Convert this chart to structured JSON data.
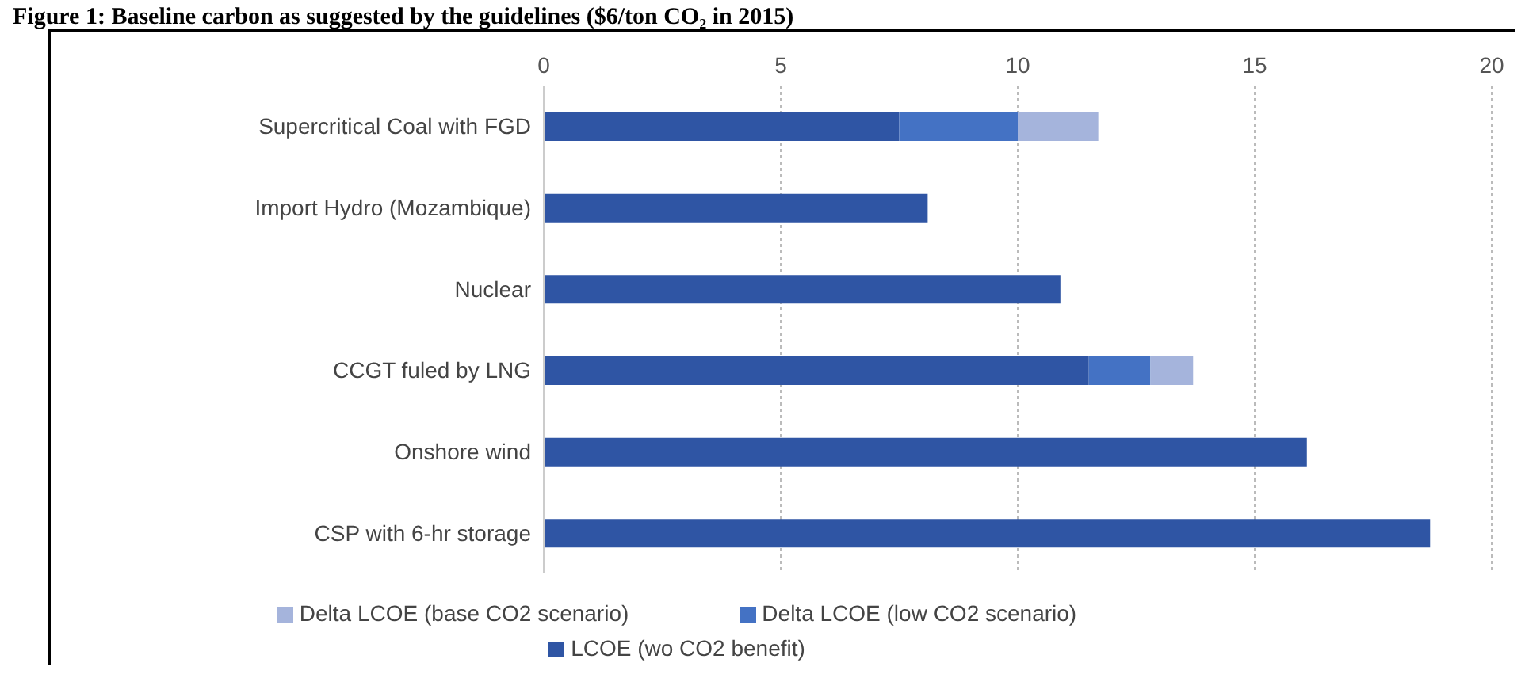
{
  "chart_data": {
    "type": "bar",
    "orientation": "horizontal",
    "stacked": true,
    "title": "Figure 1: Baseline carbon as suggested by the guidelines ($6/ton CO₂ in 2015)",
    "categories": [
      "Supercritical Coal with FGD",
      "Import Hydro (Mozambique)",
      "Nuclear",
      "CCGT fuled by LNG",
      "Onshore wind",
      "CSP with 6-hr storage"
    ],
    "series": [
      {
        "name": "LCOE (wo CO2 benefit)",
        "color": "#2f55a4",
        "values": [
          7.5,
          8.1,
          10.9,
          11.5,
          16.1,
          18.7
        ]
      },
      {
        "name": "Delta LCOE (low CO2 scenario)",
        "color": "#4472c4",
        "values": [
          2.5,
          null,
          null,
          1.3,
          null,
          null
        ]
      },
      {
        "name": "Delta LCOE (base CO2 scenario)",
        "color": "#a5b4dc",
        "values": [
          1.7,
          null,
          null,
          0.9,
          null,
          null
        ]
      }
    ],
    "xlim": [
      0,
      20
    ],
    "xticks": [
      0,
      5,
      10,
      15,
      20
    ],
    "grid": "x",
    "legend": "bottom"
  }
}
